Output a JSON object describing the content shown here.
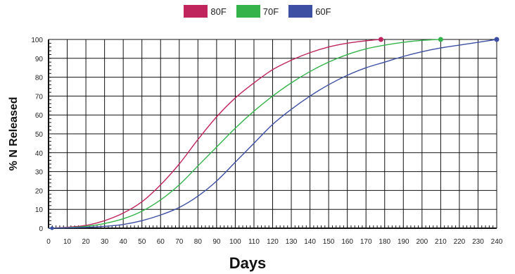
{
  "chart_data": {
    "type": "line",
    "title": "",
    "xlabel": "Days",
    "ylabel": "% N Released",
    "xlim": [
      0,
      240
    ],
    "ylim": [
      0,
      100
    ],
    "x_ticks": [
      0,
      10,
      20,
      30,
      40,
      50,
      60,
      70,
      80,
      90,
      100,
      110,
      120,
      130,
      140,
      150,
      160,
      170,
      180,
      190,
      200,
      210,
      220,
      230,
      240
    ],
    "y_ticks": [
      0,
      10,
      20,
      30,
      40,
      50,
      60,
      70,
      80,
      90,
      100
    ],
    "grid": true,
    "legend_position": "top-center",
    "series": [
      {
        "name": "80F",
        "color": "#c0245c",
        "points": [
          [
            0,
            0
          ],
          [
            10,
            0.5
          ],
          [
            20,
            1.5
          ],
          [
            30,
            4
          ],
          [
            40,
            8
          ],
          [
            50,
            14
          ],
          [
            60,
            23
          ],
          [
            70,
            34
          ],
          [
            80,
            47
          ],
          [
            90,
            59
          ],
          [
            100,
            69
          ],
          [
            110,
            77
          ],
          [
            120,
            84
          ],
          [
            130,
            89
          ],
          [
            140,
            93
          ],
          [
            150,
            96
          ],
          [
            160,
            98
          ],
          [
            170,
            99.3
          ],
          [
            178,
            100
          ]
        ],
        "end_marker": [
          178,
          100
        ]
      },
      {
        "name": "70F",
        "color": "#34b34a",
        "points": [
          [
            0,
            0
          ],
          [
            10,
            0.3
          ],
          [
            20,
            1
          ],
          [
            30,
            2.5
          ],
          [
            40,
            5
          ],
          [
            50,
            9
          ],
          [
            60,
            15
          ],
          [
            70,
            23
          ],
          [
            80,
            33
          ],
          [
            90,
            43
          ],
          [
            100,
            53
          ],
          [
            110,
            62
          ],
          [
            120,
            70
          ],
          [
            130,
            77
          ],
          [
            140,
            83
          ],
          [
            150,
            88
          ],
          [
            160,
            92
          ],
          [
            170,
            95
          ],
          [
            180,
            97
          ],
          [
            190,
            98.5
          ],
          [
            200,
            99.5
          ],
          [
            210,
            100
          ]
        ],
        "end_marker": [
          210,
          100
        ]
      },
      {
        "name": "60F",
        "color": "#3d4fa3",
        "points": [
          [
            0,
            0
          ],
          [
            10,
            0.2
          ],
          [
            20,
            0.5
          ],
          [
            30,
            1
          ],
          [
            40,
            2
          ],
          [
            50,
            4
          ],
          [
            60,
            7
          ],
          [
            70,
            11
          ],
          [
            80,
            17
          ],
          [
            90,
            25
          ],
          [
            100,
            35
          ],
          [
            110,
            45
          ],
          [
            120,
            55
          ],
          [
            130,
            63
          ],
          [
            140,
            70
          ],
          [
            150,
            76
          ],
          [
            160,
            81
          ],
          [
            170,
            85
          ],
          [
            180,
            88
          ],
          [
            190,
            91
          ],
          [
            200,
            93.5
          ],
          [
            210,
            95.5
          ],
          [
            220,
            97
          ],
          [
            230,
            98.5
          ],
          [
            240,
            100
          ]
        ],
        "end_marker": [
          240,
          100
        ]
      }
    ]
  }
}
